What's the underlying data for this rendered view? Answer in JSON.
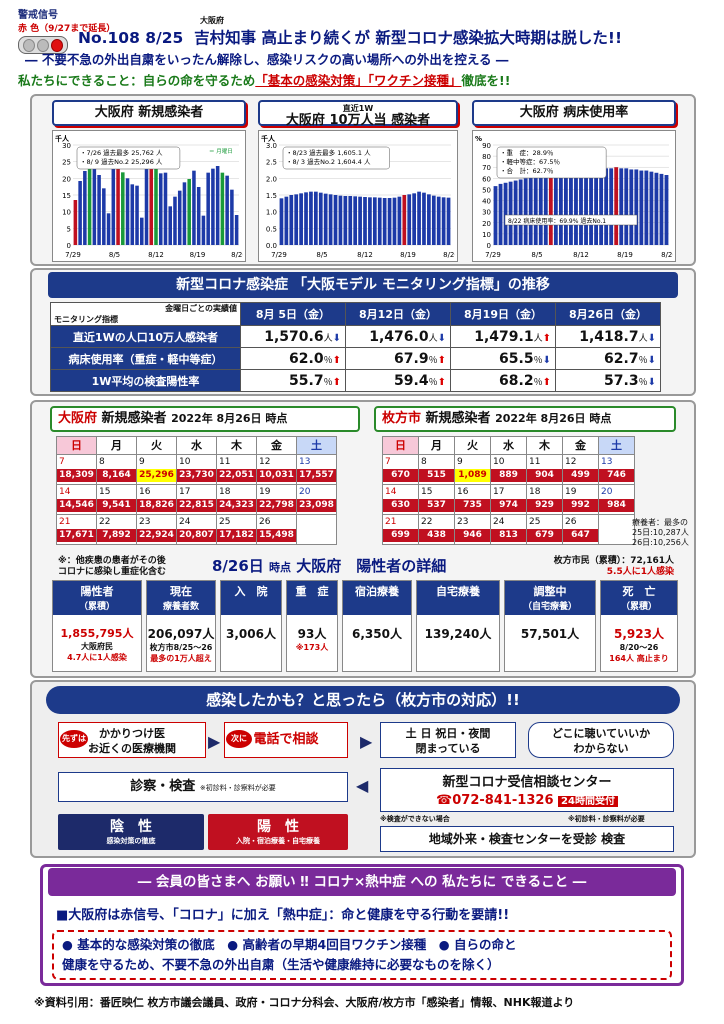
{
  "header": {
    "signal_label": "警戒信号",
    "signal_sub": "赤 色（9/27まで延長）",
    "issue": "No.108 8/25",
    "osakafu_small": "大阪府",
    "title": "吉村知事 高止まり続くが 新型コロナ感染拡大時期は脱した!!",
    "line2": "― 不要不急の外出自粛をいったん解除し、感染リスクの高い場所への外出を控える ―",
    "line3_a": "私たちにできること：自らの命を守るため",
    "line3_b": "「基本の感染対策」「ワクチン接種」",
    "line3_c": "徹底を!!"
  },
  "charts": {
    "c1": {
      "title": "大阪府 新規感染者",
      "unit": "千人",
      "legend": "＝ 月曜日",
      "note1": "・7/26 過去最多 25,762 人",
      "note2": "・8/ 9 過去No.2 25,296 人",
      "xlabels": [
        "7/29",
        "8/5",
        "8/12",
        "8/19",
        "8/26"
      ],
      "ylabels": [
        "30",
        "25",
        "20",
        "15",
        "10",
        "5",
        "0"
      ]
    },
    "c2": {
      "title": "大阪府 10万人当 感染者",
      "subtitle": "直近1W",
      "unit": "千人",
      "note1": "・8/23 過去最多 1,605.1 人",
      "note2": "・8/ 3 過去No.2 1,604.4 人",
      "xlabels": [
        "7/29",
        "8/5",
        "8/12",
        "8/19",
        "8/26"
      ],
      "ylabels": [
        "3.0",
        "2.5",
        "2.0",
        "1.5",
        "1.0",
        "0.5",
        "0.0"
      ]
    },
    "c3": {
      "title": "大阪府 病床使用率",
      "unit": "%",
      "note1": "・重　症：28.9％",
      "note2": "・軽中等症：67.5％",
      "note3": "・合　計：62.7％",
      "note4": "8/22 病床使用率：69.9% 過去No.1",
      "xlabels": [
        "7/29",
        "8/5",
        "8/12",
        "8/19",
        "8/26"
      ],
      "ylabels": [
        "90",
        "80",
        "70",
        "60",
        "50",
        "40",
        "30",
        "20",
        "10",
        "0"
      ]
    }
  },
  "chart_data": [
    {
      "type": "bar",
      "title": "大阪府 新規感染者",
      "unit": "千人",
      "ylim": [
        0,
        30
      ],
      "values": [
        13.5,
        19.2,
        22.2,
        24.0,
        23.4,
        21.0,
        17.0,
        9.5,
        25.0,
        25.8,
        21.8,
        20.0,
        18.2,
        17.8,
        8.2,
        25.3,
        23.6,
        24.5,
        21.5,
        21.7,
        11.6,
        14.5,
        16.3,
        18.8,
        19.8,
        22.3,
        17.4,
        8.8,
        21.7,
        22.9,
        23.7,
        21.7,
        20.8,
        16.6,
        9.0
      ]
    },
    {
      "type": "bar",
      "title": "大阪府 10万人当 感染者",
      "unit": "千人",
      "ylim": [
        0,
        3.0
      ],
      "values": [
        1.4,
        1.45,
        1.5,
        1.52,
        1.55,
        1.58,
        1.6,
        1.6,
        1.57,
        1.54,
        1.52,
        1.5,
        1.48,
        1.47,
        1.47,
        1.46,
        1.45,
        1.44,
        1.43,
        1.43,
        1.42,
        1.41,
        1.41,
        1.42,
        1.45,
        1.5,
        1.52,
        1.55,
        1.6,
        1.57,
        1.52,
        1.48,
        1.45,
        1.43,
        1.42
      ]
    },
    {
      "type": "bar",
      "title": "大阪府 病床使用率",
      "unit": "%",
      "ylim": [
        0,
        90
      ],
      "values": [
        53,
        55,
        56,
        57,
        58,
        59,
        60,
        61,
        62,
        63,
        63,
        64,
        65,
        65,
        66,
        66,
        67,
        67,
        68,
        68,
        68,
        69,
        69,
        69,
        70,
        69,
        69,
        68,
        68,
        67,
        67,
        66,
        65,
        64,
        63
      ]
    }
  ],
  "monitoring": {
    "title": "新型コロナ感染症 「大阪モデル モニタリング指標」の推移",
    "corner_top": "金曜日ごとの実績値",
    "corner_bottom": "モニタリング指標",
    "cols": [
      "8月 5日（金）",
      "8月12日（金）",
      "8月19日（金）",
      "8月26日（金）"
    ],
    "rows": [
      {
        "label": "直近1Wの人口10万人感染者",
        "vals": [
          [
            "1,570.6",
            "人",
            "down"
          ],
          [
            "1,476.0",
            "人",
            "down"
          ],
          [
            "1,479.1",
            "人",
            "up"
          ],
          [
            "1,418.7",
            "人",
            "down"
          ]
        ]
      },
      {
        "label": "病床使用率（重症・軽中等症）",
        "vals": [
          [
            "62.0",
            "％",
            "up"
          ],
          [
            "67.9",
            "％",
            "up"
          ],
          [
            "65.5",
            "％",
            "down"
          ],
          [
            "62.7",
            "％",
            "down"
          ]
        ]
      },
      {
        "label": "1W平均の検査陽性率",
        "vals": [
          [
            "55.7",
            "％",
            "up"
          ],
          [
            "59.4",
            "％",
            "up"
          ],
          [
            "68.2",
            "％",
            "up"
          ],
          [
            "57.3",
            "％",
            "down"
          ]
        ]
      }
    ]
  },
  "cal1": {
    "title": "大阪府",
    "title2": "新規感染者",
    "date": "2022年 8月26日 時点",
    "days": [
      "日",
      "月",
      "火",
      "水",
      "木",
      "金",
      "土"
    ],
    "weeks": [
      [
        [
          "7",
          "18,309"
        ],
        [
          "8",
          "8,164"
        ],
        [
          "9",
          "25,296"
        ],
        [
          "10",
          "23,730"
        ],
        [
          "11",
          "22,051"
        ],
        [
          "12",
          "10,031"
        ],
        [
          "13",
          "17,557"
        ]
      ],
      [
        [
          "14",
          "14,546"
        ],
        [
          "15",
          "9,541"
        ],
        [
          "16",
          "18,826"
        ],
        [
          "17",
          "22,815"
        ],
        [
          "18",
          "24,323"
        ],
        [
          "19",
          "22,798"
        ],
        [
          "20",
          "23,098"
        ]
      ],
      [
        [
          "21",
          "17,671"
        ],
        [
          "22",
          "7,892"
        ],
        [
          "23",
          "22,924"
        ],
        [
          "24",
          "20,807"
        ],
        [
          "25",
          "17,182"
        ],
        [
          "26",
          "15,498"
        ],
        [
          "",
          ""
        ]
      ]
    ]
  },
  "cal2": {
    "title": "枚方市",
    "title2": "新規感染者",
    "date": "2022年 8月26日 時点",
    "days": [
      "日",
      "月",
      "火",
      "水",
      "木",
      "金",
      "土"
    ],
    "weeks": [
      [
        [
          "7",
          "670"
        ],
        [
          "8",
          "515"
        ],
        [
          "9",
          "1,089"
        ],
        [
          "10",
          "889"
        ],
        [
          "11",
          "904"
        ],
        [
          "12",
          "499"
        ],
        [
          "13",
          "746"
        ]
      ],
      [
        [
          "14",
          "630"
        ],
        [
          "15",
          "537"
        ],
        [
          "16",
          "735"
        ],
        [
          "17",
          "974"
        ],
        [
          "18",
          "929"
        ],
        [
          "19",
          "992"
        ],
        [
          "20",
          "984"
        ]
      ],
      [
        [
          "21",
          "699"
        ],
        [
          "22",
          "438"
        ],
        [
          "23",
          "946"
        ],
        [
          "24",
          "813"
        ],
        [
          "25",
          "679"
        ],
        [
          "26",
          "647"
        ],
        [
          "",
          ""
        ]
      ]
    ],
    "note": "療養者：最多の 25日:10,287人 26日:10,256人"
  },
  "detail": {
    "note_left1": "※：他疾患の患者がその後",
    "note_left2": "コロナに感染し重症化含む",
    "title_date": "8/26日",
    "title_mid": "時点",
    "title_main": "大阪府　陽性者の詳細",
    "right1": "枚方市民（累積）：72,161人",
    "right2": "5.5人に1人感染",
    "boxes": [
      {
        "head": "陽性者",
        "sub": "（累積）",
        "value": "1,855,795人",
        "n1": "大阪府民",
        "n2": "4.7人に1人感染"
      },
      {
        "head": "現在",
        "sub": "療養者数",
        "value": "206,097人",
        "n1": "枚方市8/25～26",
        "n2": "最多の1万人超え"
      },
      {
        "head": "入　院",
        "value": "3,006人"
      },
      {
        "head": "重　症",
        "value": "93人",
        "n1": "※173人"
      },
      {
        "head": "宿泊療養",
        "value": "6,350人"
      },
      {
        "head": "自宅療養",
        "value": "139,240人"
      },
      {
        "head": "調整中",
        "sub": "（自宅療養）",
        "value": "57,501人"
      },
      {
        "head": "死　亡",
        "sub": "（累積）",
        "value": "5,923人",
        "n1": "8/20～26",
        "n2": "164人 高止まり"
      }
    ]
  },
  "flow": {
    "title": "感染したかも？と思ったら（枚方市の対応）!!",
    "first": "先ずは",
    "doc1": "かかりつけ医",
    "doc2": "お近くの医療機関",
    "next": "次に",
    "phone": "電話で相談",
    "hol1": "土 日 祝日・夜間",
    "hol2": "閉まっている",
    "nowhere1": "どこに聴いていいか",
    "nowhere2": "わからない",
    "exam": "診察・検査",
    "exam_note": "※初診料・診察料が必要",
    "center": "新型コロナ受信相談センター",
    "tel": "☎072-841-1326",
    "hours": "24時間受付",
    "neg": "陰　性",
    "neg_sub": "感染対策の徹底",
    "pos": "陽　性",
    "pos_sub": "入院・宿泊療養・自宅療養",
    "note_a": "※検査ができない場合",
    "note_b": "※初診料・診察料が必要",
    "local": "地域外来・検査センターを受診 検査"
  },
  "request": {
    "title": "― 会員の皆さまへ お願い ‼ コロナ×熱中症 への 私たちに できること ―",
    "main": "■大阪府は赤信号、「コロナ」に加え「熱中症」：命と健康を守る行動を要請!!",
    "b1": "● 基本的な感染対策の徹底",
    "b2": "● 高齢者の早期4回目ワクチン接種",
    "b3": "● 自らの命と",
    "b4": "健康を守るため、不要不急の外出自粛（生活や健康維持に必要なものを除く）"
  },
  "footer": "※資料引用：番匠映仁 枚方市議会議員、政府・コロナ分科会、大阪府/枚方市「感染者」情報、NHK報道より"
}
